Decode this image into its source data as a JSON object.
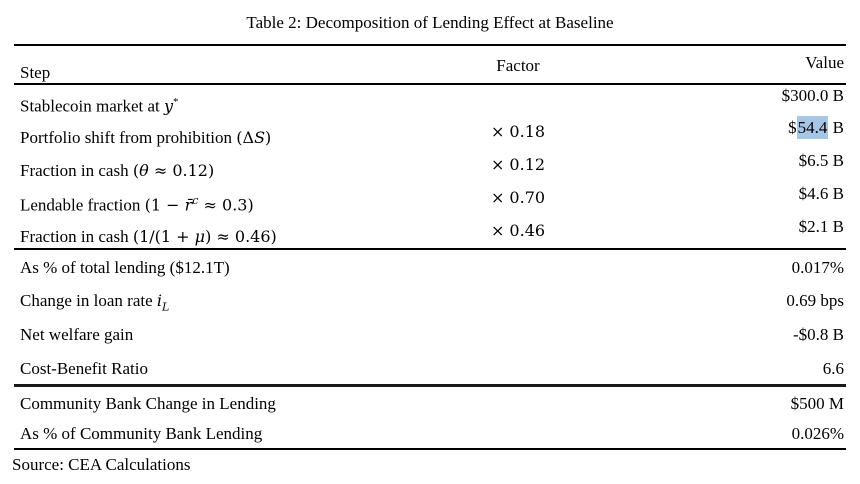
{
  "title": "Table 2: Decomposition of Lending Effect at Baseline",
  "source": "Source: CEA Calculations",
  "highlight_color": "#a7c5e5",
  "columns": {
    "step": "Step",
    "factor": "Factor",
    "value": "Value"
  },
  "blocks": [
    {
      "rows": [
        {
          "step": [
            {
              "t": "Stablecoin market at "
            },
            {
              "t": "y",
              "s": "v"
            },
            {
              "t": "*",
              "s": "sup"
            }
          ],
          "factor": [],
          "value": [
            {
              "t": "$300.0 B"
            }
          ]
        },
        {
          "step": [
            {
              "t": "Portfolio shift from prohibition "
            },
            {
              "t": "(Δ",
              "s": "m"
            },
            {
              "t": "S",
              "s": "v"
            },
            {
              "t": ")",
              "s": "m"
            }
          ],
          "factor": [
            {
              "t": "× 0.18"
            }
          ],
          "value": [
            {
              "t": "$"
            },
            {
              "t": "54.4",
              "s": "hl"
            },
            {
              "t": " B"
            }
          ]
        },
        {
          "step": [
            {
              "t": "Fraction in cash "
            },
            {
              "t": "(",
              "s": "m"
            },
            {
              "t": "θ",
              "s": "v"
            },
            {
              "t": " ≈ 0.12)",
              "s": "m"
            }
          ],
          "factor": [
            {
              "t": "× 0.12"
            }
          ],
          "value": [
            {
              "t": "$6.5 B"
            }
          ]
        },
        {
          "step": [
            {
              "t": "Lendable fraction "
            },
            {
              "t": "(1 − ",
              "s": "m"
            },
            {
              "t": "r̄",
              "s": "v"
            },
            {
              "t": "c",
              "s": "vsup"
            },
            {
              "t": " ≈ 0.3)",
              "s": "m"
            }
          ],
          "factor": [
            {
              "t": "× 0.70"
            }
          ],
          "value": [
            {
              "t": "$4.6 B"
            }
          ]
        },
        {
          "step": [
            {
              "t": "Fraction in cash "
            },
            {
              "t": "(1/(1 + ",
              "s": "m"
            },
            {
              "t": "μ",
              "s": "v"
            },
            {
              "t": ") ≈ 0.46)",
              "s": "m"
            }
          ],
          "factor": [
            {
              "t": "× 0.46"
            }
          ],
          "value": [
            {
              "t": "$2.1 B"
            }
          ]
        }
      ]
    },
    {
      "rows": [
        {
          "step": [
            {
              "t": "As % of total lending ($12.1T)"
            }
          ],
          "factor": [],
          "value": [
            {
              "t": "0.017%"
            }
          ]
        },
        {
          "step": [
            {
              "t": "Change in loan rate "
            },
            {
              "t": "i",
              "s": "v"
            },
            {
              "t": "L",
              "s": "vsub"
            }
          ],
          "factor": [],
          "value": [
            {
              "t": "0.69 bps"
            }
          ]
        },
        {
          "step": [
            {
              "t": "Net welfare gain"
            }
          ],
          "factor": [],
          "value": [
            {
              "t": "-$0.8 B"
            }
          ]
        },
        {
          "step": [
            {
              "t": "Cost-Benefit Ratio"
            }
          ],
          "factor": [],
          "value": [
            {
              "t": "6.6"
            }
          ]
        }
      ]
    },
    {
      "rows": [
        {
          "step": [
            {
              "t": "Community Bank Change in Lending"
            }
          ],
          "factor": [],
          "value": [
            {
              "t": "$500 M"
            }
          ]
        },
        {
          "step": [
            {
              "t": "As % of Community Bank Lending"
            }
          ],
          "factor": [],
          "value": [
            {
              "t": "0.026%"
            }
          ]
        }
      ]
    }
  ]
}
